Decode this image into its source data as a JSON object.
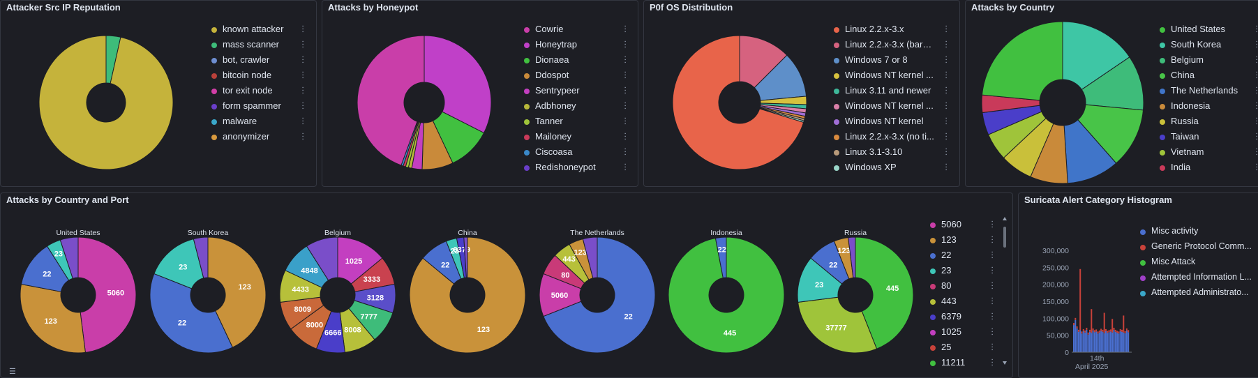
{
  "colors": {
    "bg": "#1d1e24",
    "border": "#343741",
    "text": "#dfe5ef"
  },
  "panels": {
    "reputation": {
      "title": "Attacker Src IP Reputation",
      "legend": [
        {
          "label": "known attacker",
          "color": "#c5b33b"
        },
        {
          "label": "mass scanner",
          "color": "#3ebc7a"
        },
        {
          "label": "bot, crawler",
          "color": "#6e8ed1"
        },
        {
          "label": "bitcoin node",
          "color": "#b9403a"
        },
        {
          "label": "tor exit node",
          "color": "#d23ea7"
        },
        {
          "label": "form spammer",
          "color": "#6a3ec9"
        },
        {
          "label": "malware",
          "color": "#3aa7c9"
        },
        {
          "label": "anonymizer",
          "color": "#d99a3e"
        }
      ],
      "slices": [
        96.5,
        3.5
      ]
    },
    "honeypot": {
      "title": "Attacks by Honeypot",
      "legend": [
        {
          "label": "Cowrie",
          "color": "#c93ea9"
        },
        {
          "label": "Honeytrap",
          "color": "#c040c8"
        },
        {
          "label": "Dionaea",
          "color": "#41c040"
        },
        {
          "label": "Ddospot",
          "color": "#c98a3a"
        },
        {
          "label": "Sentrypeer",
          "color": "#c33fc0"
        },
        {
          "label": "Adbhoney",
          "color": "#b7b73a"
        },
        {
          "label": "Tanner",
          "color": "#9fc43a"
        },
        {
          "label": "Mailoney",
          "color": "#c93a5a"
        },
        {
          "label": "Ciscoasa",
          "color": "#3a88c9"
        },
        {
          "label": "Redishoneypot",
          "color": "#6a3ec9"
        }
      ],
      "slices": [
        32.5,
        10.5,
        7.5,
        2.5,
        0.8,
        0.7,
        0.6,
        0.5,
        44.4
      ]
    },
    "p0f": {
      "title": "P0f OS Distribution",
      "legend": [
        {
          "label": "Linux 2.2.x-3.x",
          "color": "#e8644a"
        },
        {
          "label": "Linux 2.2.x-3.x (bare...",
          "color": "#d6627f"
        },
        {
          "label": "Windows 7 or 8",
          "color": "#5e8fc9"
        },
        {
          "label": "Windows NT kernel ...",
          "color": "#d6c13e"
        },
        {
          "label": "Linux 3.11 and newer",
          "color": "#3eb89a"
        },
        {
          "label": "Windows NT kernel ...",
          "color": "#d97fa8"
        },
        {
          "label": "Windows NT kernel",
          "color": "#a06ed6"
        },
        {
          "label": "Linux 2.2.x-3.x (no ti...",
          "color": "#d98a3e"
        },
        {
          "label": "Linux 3.1-3.10",
          "color": "#b89a7a"
        },
        {
          "label": "Windows XP",
          "color": "#9ad6c9"
        }
      ],
      "slices": [
        12.5,
        11,
        2,
        1,
        1,
        0.8,
        0.6,
        0.5,
        0.4,
        70.2
      ]
    },
    "country": {
      "title": "Attacks by Country",
      "legend": [
        {
          "label": "United States",
          "color": "#41c040"
        },
        {
          "label": "South Korea",
          "color": "#3ec6a5"
        },
        {
          "label": "Belgium",
          "color": "#3ebc7a"
        },
        {
          "label": "China",
          "color": "#48c448"
        },
        {
          "label": "The Netherlands",
          "color": "#4075c9"
        },
        {
          "label": "Indonesia",
          "color": "#c98a3a"
        },
        {
          "label": "Russia",
          "color": "#c9c03a"
        },
        {
          "label": "Taiwan",
          "color": "#4a3ec9"
        },
        {
          "label": "Vietnam",
          "color": "#9fc43a"
        },
        {
          "label": "India",
          "color": "#c93a5a"
        }
      ],
      "slices": [
        15.5,
        11,
        12,
        10.5,
        7.5,
        6.5,
        5.5,
        4.5,
        3.5,
        23.5
      ]
    },
    "country_port": {
      "title": "Attacks by Country and Port",
      "legend": [
        {
          "label": "5060",
          "color": "#c93ea9"
        },
        {
          "label": "123",
          "color": "#c9923a"
        },
        {
          "label": "22",
          "color": "#4a6fcf"
        },
        {
          "label": "23",
          "color": "#3ec6b8"
        },
        {
          "label": "80",
          "color": "#c93a78"
        },
        {
          "label": "443",
          "color": "#b7c03a"
        },
        {
          "label": "6379",
          "color": "#4a3ec9"
        },
        {
          "label": "1025",
          "color": "#c33fc0"
        },
        {
          "label": "25",
          "color": "#c9423a"
        },
        {
          "label": "11211",
          "color": "#41c040"
        }
      ],
      "pies": [
        {
          "name": "United States",
          "labels": [
            "5060",
            "123",
            "22",
            "23"
          ]
        },
        {
          "name": "South Korea",
          "labels": [
            "123",
            "22",
            "23"
          ]
        },
        {
          "name": "Belgium",
          "labels": [
            "1025",
            "3333",
            "3128",
            "7777",
            "8008",
            "6666",
            "8000",
            "8009",
            "4433",
            "4848"
          ]
        },
        {
          "name": "China",
          "labels": [
            "123",
            "22",
            "23",
            "6379"
          ]
        },
        {
          "name": "The Netherlands",
          "labels": [
            "22",
            "5060",
            "80",
            "443",
            "123"
          ]
        },
        {
          "name": "Indonesia",
          "labels": [
            "445",
            "22"
          ]
        },
        {
          "name": "Russia",
          "labels": [
            "445",
            "37777",
            "23",
            "22",
            "123"
          ]
        }
      ]
    },
    "suricata": {
      "title": "Suricata Alert Category Histogram",
      "legend": [
        {
          "label": "Misc activity",
          "color": "#4a6fcf"
        },
        {
          "label": "Generic Protocol Comm...",
          "color": "#c9423a"
        },
        {
          "label": "Misc Attack",
          "color": "#41c040"
        },
        {
          "label": "Attempted Information L...",
          "color": "#a040c8"
        },
        {
          "label": "Attempted Administrato...",
          "color": "#3aa7c9"
        }
      ],
      "yticks": [
        "300,000",
        "250,000",
        "200,000",
        "150,000",
        "100,000",
        "50,000",
        "0"
      ],
      "xtick": "14th",
      "xsub": "April 2025"
    }
  },
  "chart_data": [
    {
      "type": "pie",
      "title": "Attacker Src IP Reputation",
      "categories": [
        "known attacker",
        "mass scanner"
      ],
      "values": [
        96.5,
        3.5
      ]
    },
    {
      "type": "pie",
      "title": "Attacks by Honeypot",
      "categories": [
        "Honeytrap",
        "Dionaea",
        "Ddospot",
        "Sentrypeer",
        "Adbhoney",
        "Tanner",
        "Mailoney",
        "Ciscoasa",
        "Cowrie"
      ],
      "values": [
        32.5,
        10.5,
        7.5,
        2.5,
        0.8,
        0.7,
        0.6,
        0.5,
        44.4
      ]
    },
    {
      "type": "pie",
      "title": "P0f OS Distribution",
      "categories": [
        "Linux 2.2.x-3.x (bare...",
        "Windows 7 or 8",
        "Windows NT kernel ...",
        "Linux 3.11 and newer",
        "Windows NT kernel ...",
        "Windows NT kernel",
        "Linux 2.2.x-3.x (no ti...",
        "Linux 3.1-3.10",
        "Windows XP",
        "Linux 2.2.x-3.x"
      ],
      "values": [
        12.5,
        11,
        2,
        1,
        1,
        0.8,
        0.6,
        0.5,
        0.4,
        70.2
      ]
    },
    {
      "type": "pie",
      "title": "Attacks by Country",
      "categories": [
        "South Korea",
        "Belgium",
        "China",
        "The Netherlands",
        "Indonesia",
        "Russia",
        "Vietnam",
        "Taiwan",
        "India",
        "United States"
      ],
      "values": [
        15.5,
        11,
        12,
        10.5,
        7.5,
        6.5,
        5.5,
        4.5,
        3.5,
        23.5
      ]
    },
    {
      "type": "bar",
      "title": "Suricata Alert Category Histogram",
      "ylim": [
        0,
        300000
      ],
      "xlabel": "April 2025"
    }
  ]
}
